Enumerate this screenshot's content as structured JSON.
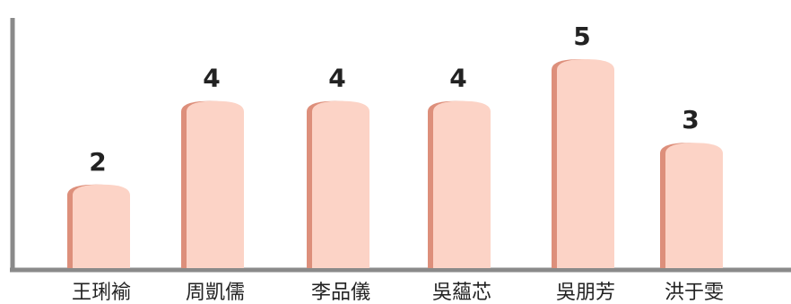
{
  "chart_data": {
    "type": "bar",
    "categories": [
      "王琍褕",
      "周凱儒",
      "李品儀",
      "吳蘊芯",
      "吳朋芳",
      "洪于雯"
    ],
    "values": [
      2,
      4,
      4,
      4,
      5,
      3
    ],
    "data_labels": [
      "2",
      "4",
      "4",
      "4",
      "5",
      "3"
    ],
    "title": "",
    "xlabel": "",
    "ylabel": "",
    "ylim": [
      0,
      5
    ],
    "grid": false,
    "legend": "none",
    "colors": {
      "bar": "#fcd3c6",
      "bar_shadow": "#dd8f7b",
      "axis": "#8a8a8a",
      "text": "#222222"
    }
  }
}
